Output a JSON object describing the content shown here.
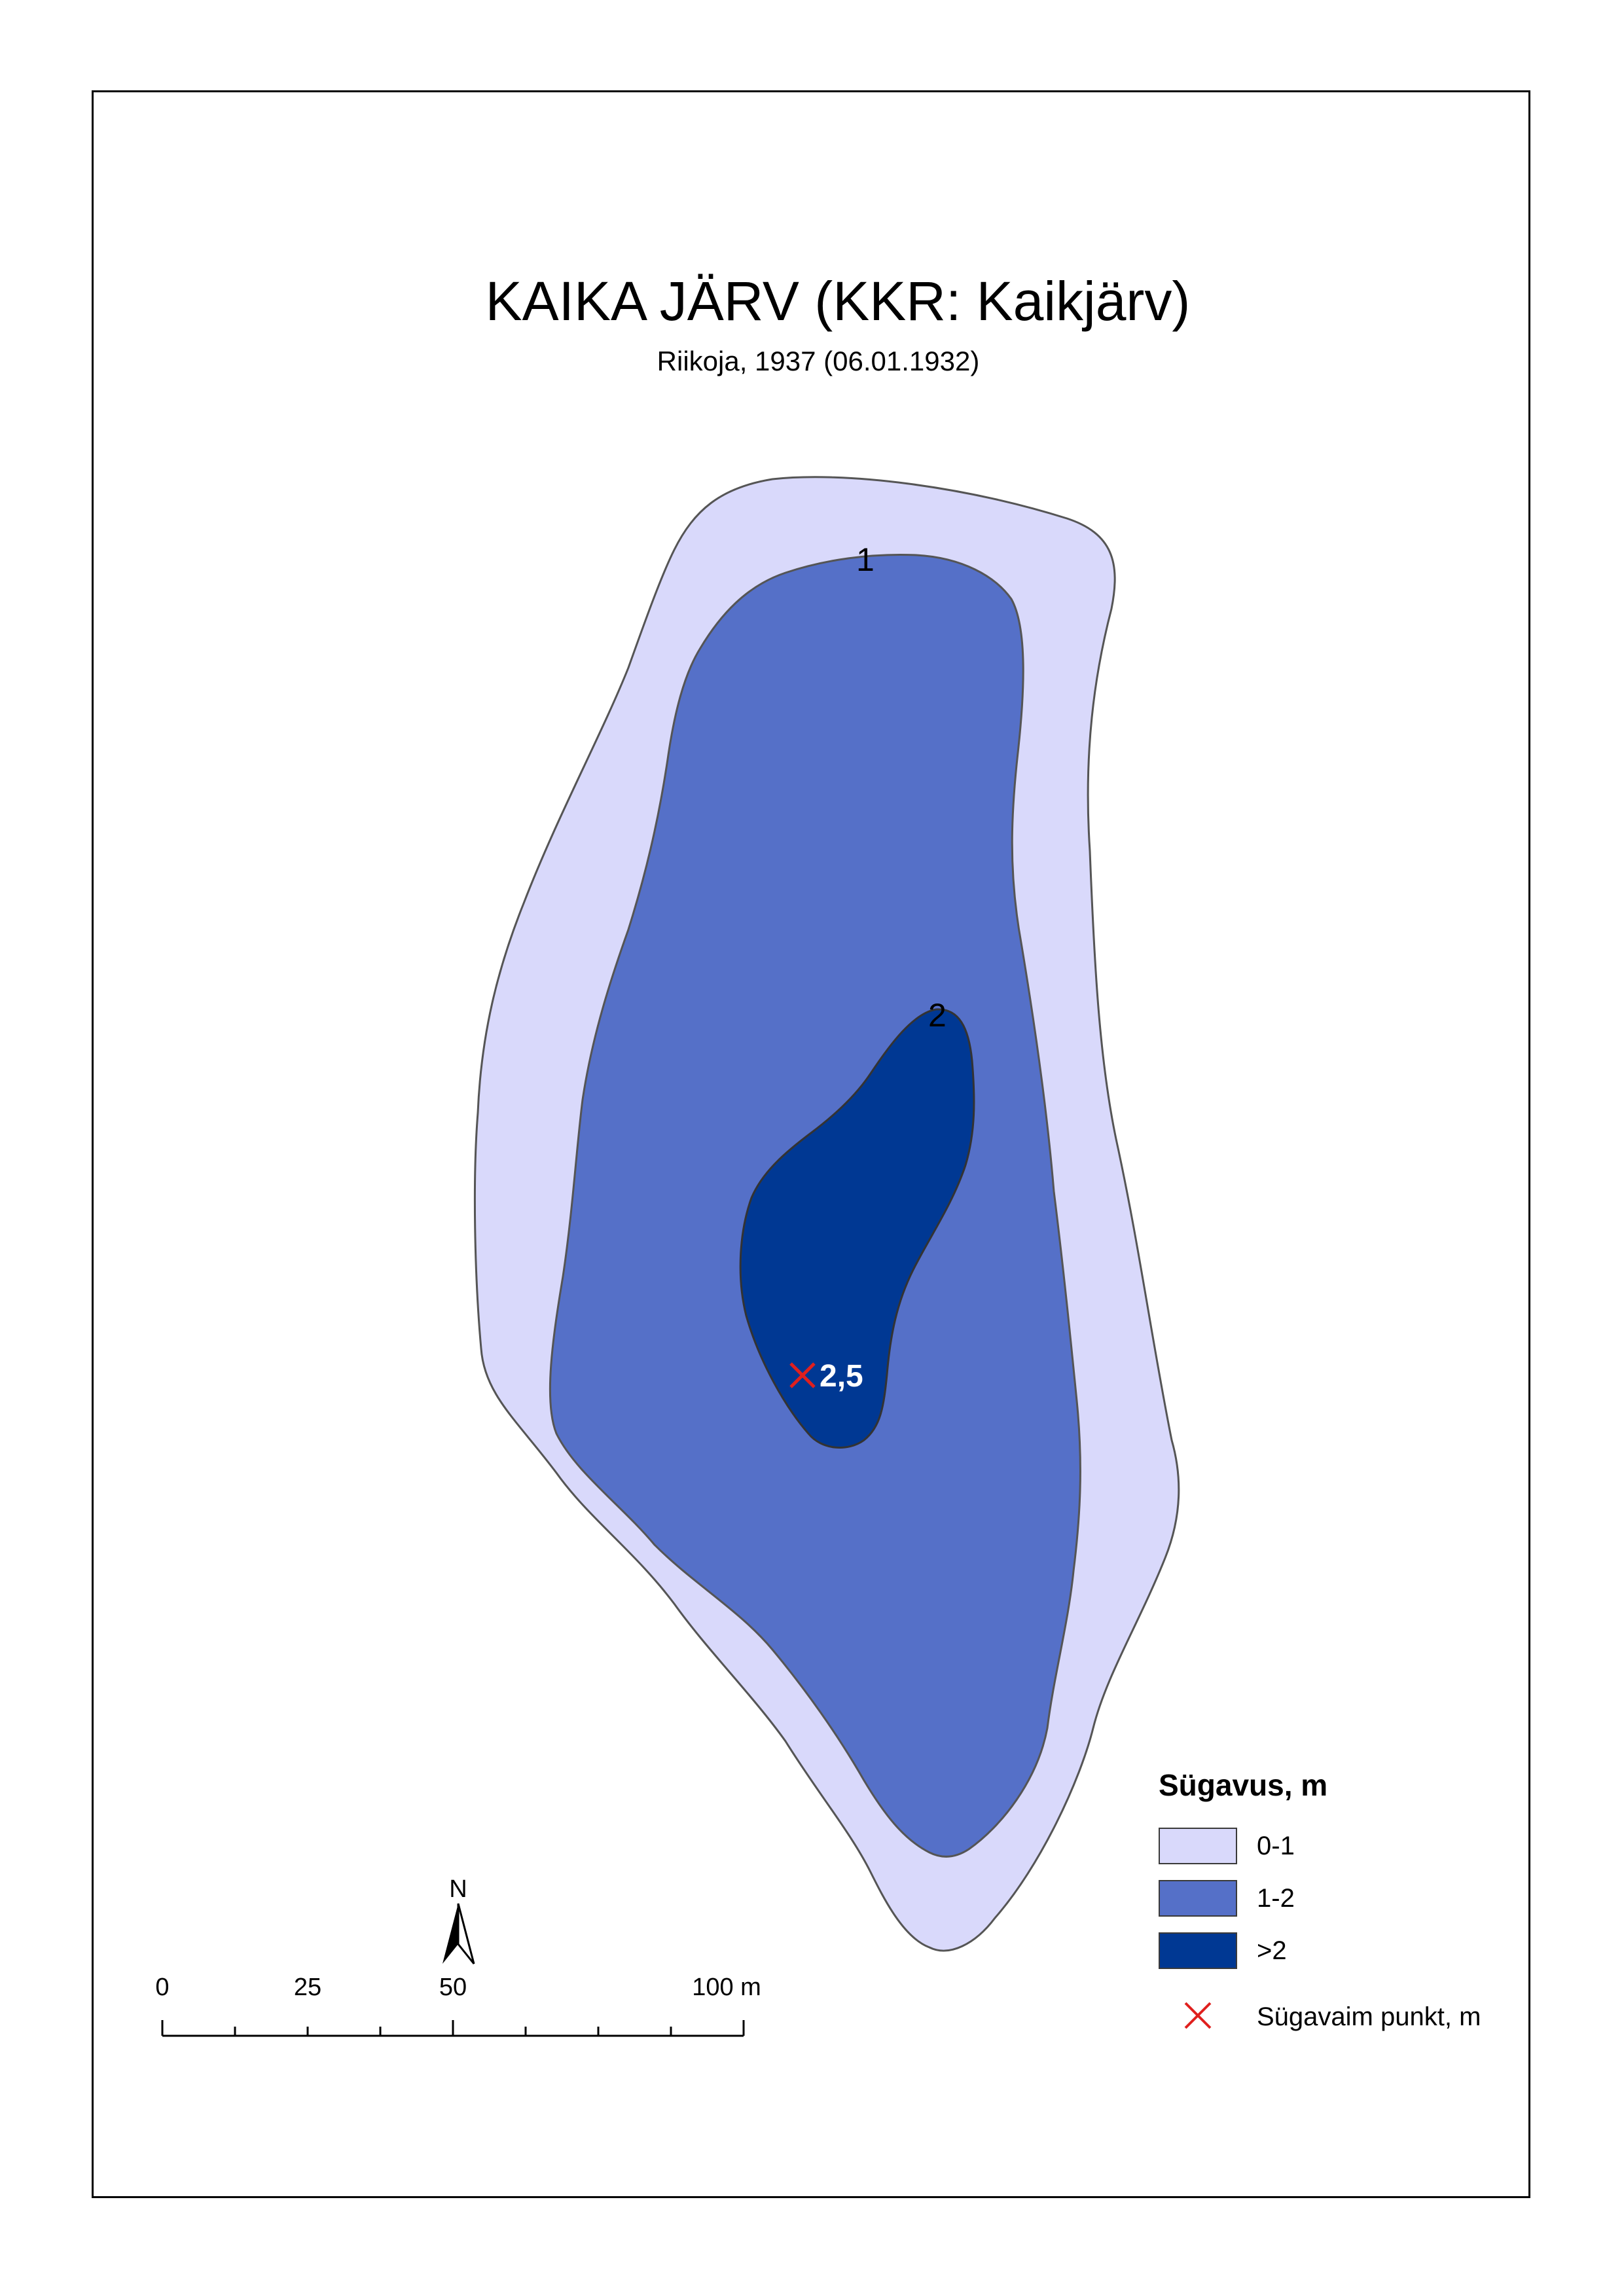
{
  "title": "KAIKA JÄRV (KKR: Kaikjärv)",
  "subtitle": "Riikoja, 1937 (06.01.1932)",
  "contour_labels": [
    "1",
    "2"
  ],
  "deepest_point": {
    "label": "2,5",
    "color": "#e0201e"
  },
  "legend": {
    "title": "Sügavus, m",
    "classes": [
      {
        "label": "0-1",
        "color": "#d9d9fb"
      },
      {
        "label": "1-2",
        "color": "#5570c8"
      },
      {
        "label": ">2",
        "color": "#003893"
      }
    ],
    "point_label": "Sügavaim punkt, m"
  },
  "scalebar": {
    "ticks": [
      "0",
      "25",
      "50",
      "100 m"
    ]
  },
  "north_arrow": {
    "label": "N"
  }
}
